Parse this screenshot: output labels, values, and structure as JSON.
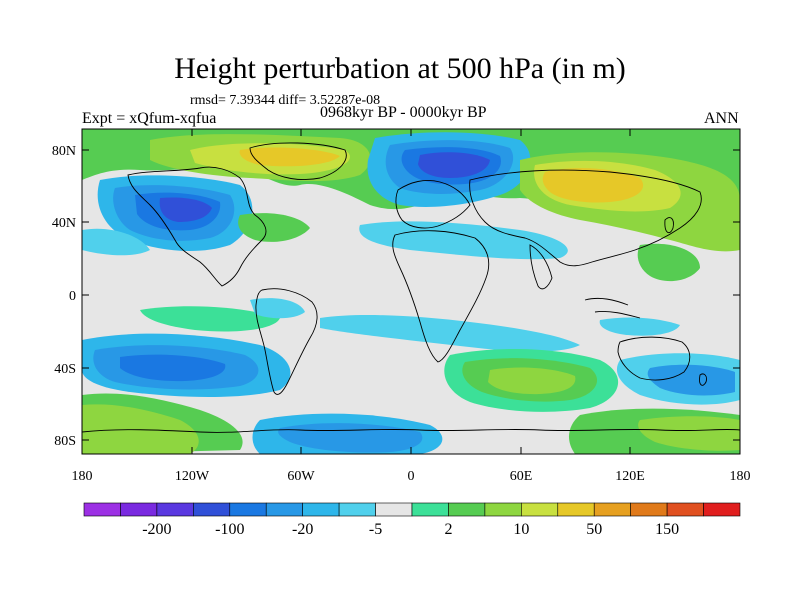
{
  "title": "Height perturbation at 500 hPa (in m)",
  "stats": "rmsd= 7.39344 diff= 3.52287e-08",
  "experiment": "Expt = xQfum-xqfua",
  "period": "0968kyr BP - 0000kyr BP",
  "season": "ANN",
  "lat_ticks": [
    "80N",
    "40N",
    "0",
    "40S",
    "80S"
  ],
  "lon_ticks": [
    "180",
    "120W",
    "60W",
    "0",
    "60E",
    "120E",
    "180"
  ],
  "colorbar": {
    "colors": [
      "#9c30e4",
      "#7a2ae0",
      "#5a38e0",
      "#3050d8",
      "#1a78e2",
      "#2898e6",
      "#2eb6ea",
      "#50d0ec",
      "#e6e6e6",
      "#3ce098",
      "#56cc52",
      "#8ed640",
      "#c8e040",
      "#e6c828",
      "#e6a020",
      "#e07a1a",
      "#e05020",
      "#e01e1e"
    ],
    "labels": [
      "-200",
      "-100",
      "-20",
      "-5",
      "2",
      "10",
      "50",
      "150"
    ]
  },
  "colors": {
    "background": "#e6e6e6",
    "coast": "#000000"
  }
}
